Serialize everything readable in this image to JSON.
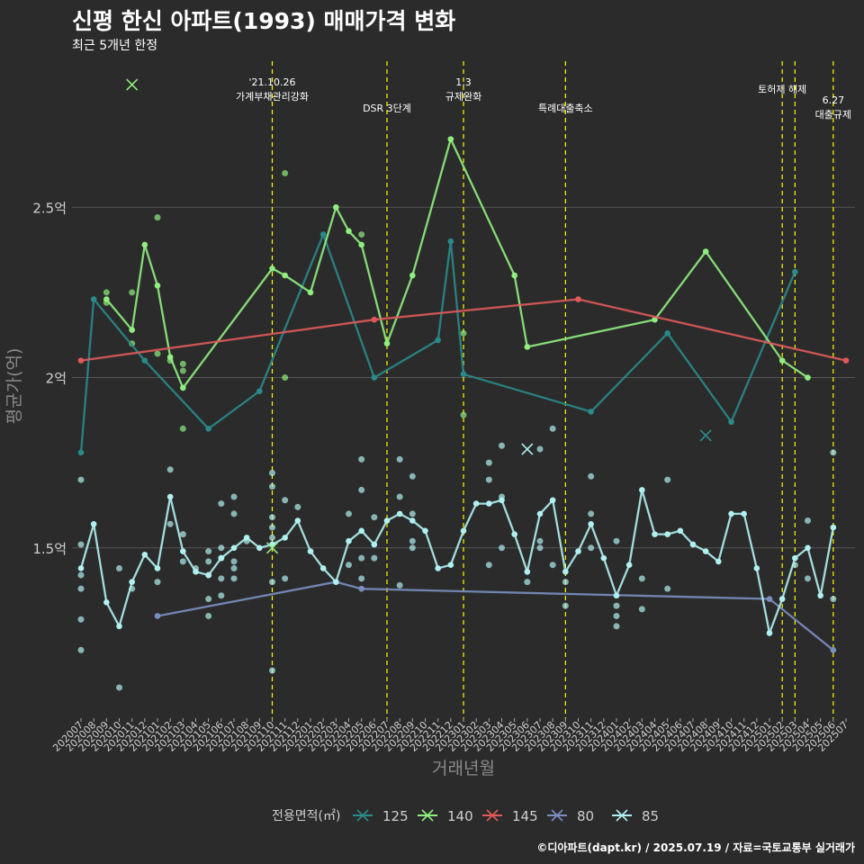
{
  "chart_data": {
    "type": "line",
    "title": "신평 한신 아파트(1993) 매매가격 변화",
    "subtitle": "최근 5개년 한정",
    "caption": "©디아파트(dapt.kr) / 2025.07.19 / 자료=국토교통부 실거래가",
    "xlabel": "거래년월",
    "ylabel": "평균가(억)",
    "ylim": [
      1.0,
      2.95
    ],
    "yticks": [
      1.5,
      2.0,
      2.5
    ],
    "ytick_labels": [
      "1.5억",
      "2억",
      "2.5억"
    ],
    "x_categories": [
      "202007",
      "202008",
      "202009",
      "202010",
      "202011",
      "202012",
      "202101",
      "202102",
      "202103",
      "202104",
      "202105",
      "202106",
      "202107",
      "202108",
      "202109",
      "202110",
      "202111",
      "202112",
      "202201",
      "202202",
      "202203",
      "202204",
      "202205",
      "202206",
      "202207",
      "202208",
      "202209",
      "202210",
      "202211",
      "202212",
      "202301",
      "202302",
      "202303",
      "202304",
      "202305",
      "202306",
      "202307",
      "202308",
      "202309",
      "202310",
      "202311",
      "202312",
      "202401",
      "202402",
      "202403",
      "202404",
      "202405",
      "202406",
      "202407",
      "202408",
      "202409",
      "202410",
      "202411",
      "202412",
      "202501",
      "202502",
      "202503",
      "202504",
      "202505",
      "202506",
      "202507"
    ],
    "legend_title": "전용면적(㎡)",
    "legend_position": "bottom",
    "colors": {
      "background": "#2b2b2b",
      "grid": "#555555",
      "vline": "#ffff00",
      "125": "#2a8a8a",
      "140": "#90ee80",
      "145": "#e05a5a",
      "80": "#7a8fc0",
      "85": "#b0f0f0"
    },
    "events": [
      {
        "x": "202110",
        "label": "'21.10.26\n가계부채관리강화",
        "row": 1
      },
      {
        "x": "202207",
        "label": "DSR 3단계",
        "row": 2
      },
      {
        "x": "202301",
        "label": "1.3\n규제완화",
        "row": 1
      },
      {
        "x": "202309",
        "label": "특례대출축소",
        "row": 2
      },
      {
        "x": "202502",
        "label": "토허제 해제",
        "row": 1
      },
      {
        "x": "202503",
        "label": "",
        "row": 1
      },
      {
        "x": "202506",
        "label": "6.27\n대출규제",
        "row": 2
      }
    ],
    "series": [
      {
        "name": "125",
        "points": [
          [
            "202007",
            1.78
          ],
          [
            "202008",
            2.23
          ],
          [
            "202012",
            2.05
          ],
          [
            "202105",
            1.85
          ],
          [
            "202109",
            1.96
          ],
          [
            "202202",
            2.42
          ],
          [
            "202206",
            2.0
          ],
          [
            "202211",
            2.11
          ],
          [
            "202212",
            2.4
          ],
          [
            "202301",
            2.01
          ],
          [
            "202311",
            1.9
          ],
          [
            "202405",
            2.13
          ],
          [
            "202410",
            1.87
          ],
          [
            "202503",
            2.31
          ]
        ]
      },
      {
        "name": "140",
        "points": [
          [
            "202009",
            2.23
          ],
          [
            "202011",
            2.14
          ],
          [
            "202012",
            2.39
          ],
          [
            "202101",
            2.27
          ],
          [
            "202102",
            2.06
          ],
          [
            "202103",
            1.97
          ],
          [
            "202110",
            2.32
          ],
          [
            "202111",
            2.3
          ],
          [
            "202201",
            2.25
          ],
          [
            "202203",
            2.5
          ],
          [
            "202204",
            2.43
          ],
          [
            "202205",
            2.39
          ],
          [
            "202207",
            2.1
          ],
          [
            "202209",
            2.3
          ],
          [
            "202212",
            2.7
          ],
          [
            "202305",
            2.3
          ],
          [
            "202306",
            2.09
          ],
          [
            "202404",
            2.17
          ],
          [
            "202408",
            2.37
          ],
          [
            "202502",
            2.05
          ],
          [
            "202504",
            2.0
          ]
        ]
      },
      {
        "name": "145",
        "points": [
          [
            "202007",
            2.05
          ],
          [
            "202206",
            2.17
          ],
          [
            "202310",
            2.23
          ],
          [
            "202507",
            2.05
          ]
        ]
      },
      {
        "name": "80",
        "points": [
          [
            "202101",
            1.3
          ],
          [
            "202203",
            1.4
          ],
          [
            "202205",
            1.38
          ],
          [
            "202501",
            1.35
          ],
          [
            "202506",
            1.2
          ]
        ]
      },
      {
        "name": "85",
        "points": [
          [
            "202007",
            1.44
          ],
          [
            "202008",
            1.57
          ],
          [
            "202009",
            1.34
          ],
          [
            "202010",
            1.27
          ],
          [
            "202011",
            1.4
          ],
          [
            "202012",
            1.48
          ],
          [
            "202101",
            1.44
          ],
          [
            "202102",
            1.65
          ],
          [
            "202103",
            1.49
          ],
          [
            "202104",
            1.43
          ],
          [
            "202105",
            1.42
          ],
          [
            "202106",
            1.47
          ],
          [
            "202107",
            1.5
          ],
          [
            "202108",
            1.53
          ],
          [
            "202109",
            1.5
          ],
          [
            "202110",
            1.51
          ],
          [
            "202111",
            1.53
          ],
          [
            "202112",
            1.58
          ],
          [
            "202201",
            1.49
          ],
          [
            "202202",
            1.44
          ],
          [
            "202203",
            1.4
          ],
          [
            "202204",
            1.52
          ],
          [
            "202205",
            1.55
          ],
          [
            "202206",
            1.51
          ],
          [
            "202207",
            1.58
          ],
          [
            "202208",
            1.6
          ],
          [
            "202209",
            1.58
          ],
          [
            "202210",
            1.55
          ],
          [
            "202211",
            1.44
          ],
          [
            "202212",
            1.45
          ],
          [
            "202301",
            1.55
          ],
          [
            "202302",
            1.63
          ],
          [
            "202303",
            1.63
          ],
          [
            "202304",
            1.64
          ],
          [
            "202305",
            1.54
          ],
          [
            "202306",
            1.43
          ],
          [
            "202307",
            1.6
          ],
          [
            "202308",
            1.64
          ],
          [
            "202309",
            1.43
          ],
          [
            "202310",
            1.49
          ],
          [
            "202311",
            1.57
          ],
          [
            "202312",
            1.47
          ],
          [
            "202401",
            1.36
          ],
          [
            "202402",
            1.45
          ],
          [
            "202403",
            1.67
          ],
          [
            "202404",
            1.54
          ],
          [
            "202405",
            1.54
          ],
          [
            "202406",
            1.55
          ],
          [
            "202407",
            1.51
          ],
          [
            "202408",
            1.49
          ],
          [
            "202409",
            1.46
          ],
          [
            "202410",
            1.6
          ],
          [
            "202411",
            1.6
          ],
          [
            "202412",
            1.44
          ],
          [
            "202501",
            1.25
          ],
          [
            "202502",
            1.35
          ],
          [
            "202503",
            1.47
          ],
          [
            "202504",
            1.5
          ],
          [
            "202505",
            1.36
          ],
          [
            "202506",
            1.56
          ]
        ]
      }
    ],
    "scatter": [
      {
        "series": "85",
        "points": [
          [
            "202007",
            1.7
          ],
          [
            "202007",
            1.51
          ],
          [
            "202007",
            1.42
          ],
          [
            "202007",
            1.38
          ],
          [
            "202007",
            1.29
          ],
          [
            "202007",
            1.2
          ],
          [
            "202010",
            1.09
          ],
          [
            "202010",
            1.44
          ],
          [
            "202011",
            1.38
          ],
          [
            "202101",
            1.4
          ],
          [
            "202102",
            1.73
          ],
          [
            "202102",
            1.57
          ],
          [
            "202103",
            1.54
          ],
          [
            "202103",
            1.46
          ],
          [
            "202104",
            1.44
          ],
          [
            "202105",
            1.49
          ],
          [
            "202105",
            1.46
          ],
          [
            "202105",
            1.42
          ],
          [
            "202105",
            1.35
          ],
          [
            "202105",
            1.3
          ],
          [
            "202106",
            1.63
          ],
          [
            "202106",
            1.5
          ],
          [
            "202106",
            1.47
          ],
          [
            "202106",
            1.41
          ],
          [
            "202106",
            1.36
          ],
          [
            "202107",
            1.65
          ],
          [
            "202107",
            1.6
          ],
          [
            "202107",
            1.46
          ],
          [
            "202107",
            1.44
          ],
          [
            "202107",
            1.41
          ],
          [
            "202108",
            1.52
          ],
          [
            "202110",
            1.72
          ],
          [
            "202110",
            1.68
          ],
          [
            "202110",
            1.59
          ],
          [
            "202110",
            1.56
          ],
          [
            "202110",
            1.53
          ],
          [
            "202110",
            1.4
          ],
          [
            "202110",
            1.14
          ],
          [
            "202111",
            1.64
          ],
          [
            "202111",
            1.41
          ],
          [
            "202112",
            1.62
          ],
          [
            "202204",
            1.6
          ],
          [
            "202204",
            1.45
          ],
          [
            "202205",
            1.76
          ],
          [
            "202205",
            1.67
          ],
          [
            "202205",
            1.47
          ],
          [
            "202205",
            1.41
          ],
          [
            "202206",
            1.59
          ],
          [
            "202206",
            1.47
          ],
          [
            "202208",
            1.76
          ],
          [
            "202208",
            1.65
          ],
          [
            "202208",
            1.39
          ],
          [
            "202209",
            1.71
          ],
          [
            "202209",
            1.6
          ],
          [
            "202209",
            1.52
          ],
          [
            "202209",
            1.5
          ],
          [
            "202303",
            1.75
          ],
          [
            "202303",
            1.7
          ],
          [
            "202303",
            1.45
          ],
          [
            "202304",
            1.8
          ],
          [
            "202304",
            1.65
          ],
          [
            "202304",
            1.5
          ],
          [
            "202306",
            1.4
          ],
          [
            "202307",
            1.79
          ],
          [
            "202307",
            1.52
          ],
          [
            "202307",
            1.5
          ],
          [
            "202308",
            1.85
          ],
          [
            "202308",
            1.45
          ],
          [
            "202309",
            1.4
          ],
          [
            "202309",
            1.33
          ],
          [
            "202311",
            1.71
          ],
          [
            "202311",
            1.6
          ],
          [
            "202311",
            1.5
          ],
          [
            "202401",
            1.52
          ],
          [
            "202401",
            1.33
          ],
          [
            "202401",
            1.3
          ],
          [
            "202401",
            1.27
          ],
          [
            "202403",
            1.41
          ],
          [
            "202403",
            1.32
          ],
          [
            "202405",
            1.7
          ],
          [
            "202405",
            1.38
          ],
          [
            "202503",
            1.45
          ],
          [
            "202504",
            1.58
          ],
          [
            "202504",
            1.41
          ],
          [
            "202506",
            1.78
          ],
          [
            "202506",
            1.35
          ]
        ]
      },
      {
        "series": "140",
        "points": [
          [
            "202009",
            2.25
          ],
          [
            "202009",
            2.22
          ],
          [
            "202011",
            2.25
          ],
          [
            "202011",
            2.1
          ],
          [
            "202101",
            2.47
          ],
          [
            "202101",
            2.07
          ],
          [
            "202102",
            2.05
          ],
          [
            "202103",
            2.04
          ],
          [
            "202103",
            2.02
          ],
          [
            "202103",
            1.85
          ],
          [
            "202111",
            2.6
          ],
          [
            "202111",
            2.0
          ],
          [
            "202205",
            2.42
          ],
          [
            "202301",
            2.13
          ],
          [
            "202301",
            1.89
          ]
        ]
      }
    ],
    "x_markers": [
      {
        "series": "140",
        "x": "202011",
        "y": 2.86
      },
      {
        "series": "140",
        "x": "202110",
        "y": 1.5
      },
      {
        "series": "85",
        "x": "202306",
        "y": 1.79
      },
      {
        "series": "125",
        "x": "202408",
        "y": 1.83
      }
    ]
  }
}
